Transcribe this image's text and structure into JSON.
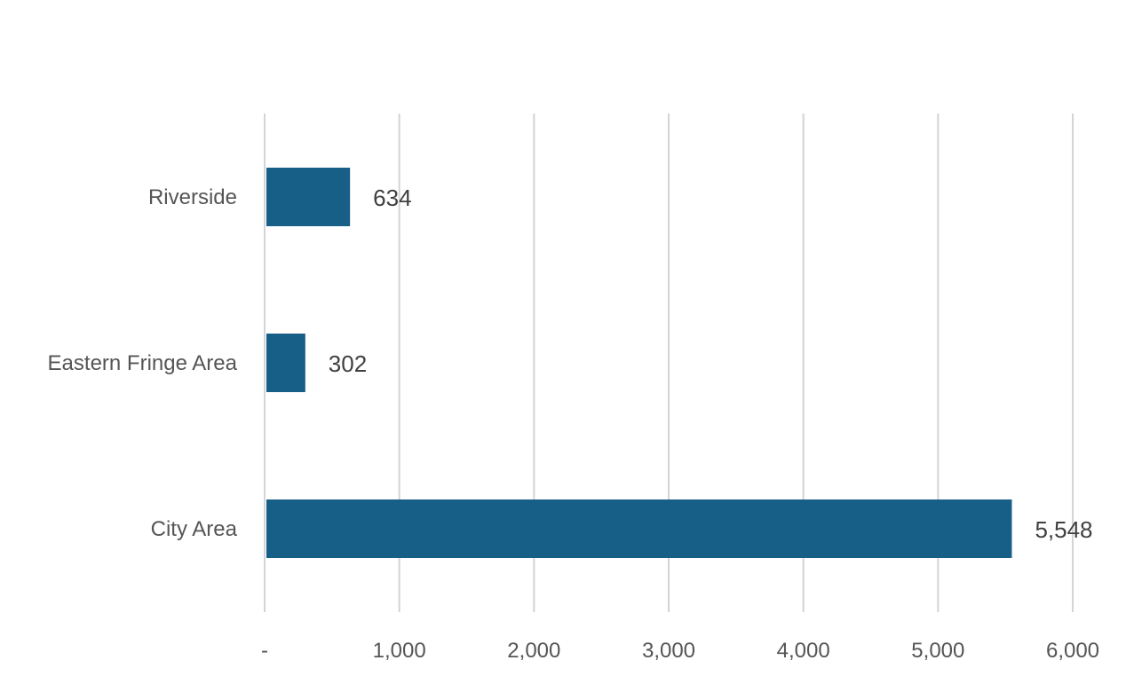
{
  "chart_data": {
    "type": "bar",
    "orientation": "horizontal",
    "categories": [
      "Riverside",
      "Eastern Fringe Area",
      "City Area"
    ],
    "values": [
      634,
      302,
      5548
    ],
    "value_labels": [
      "634",
      "302",
      "5,548"
    ],
    "xlim": [
      0,
      6000
    ],
    "x_ticks": [
      0,
      1000,
      2000,
      3000,
      4000,
      5000,
      6000
    ],
    "x_tick_labels": [
      "-",
      "1,000",
      "2,000",
      "3,000",
      "4,000",
      "5,000",
      "6,000"
    ],
    "grid": true,
    "legend": "none",
    "bar_color": "#175f87"
  }
}
